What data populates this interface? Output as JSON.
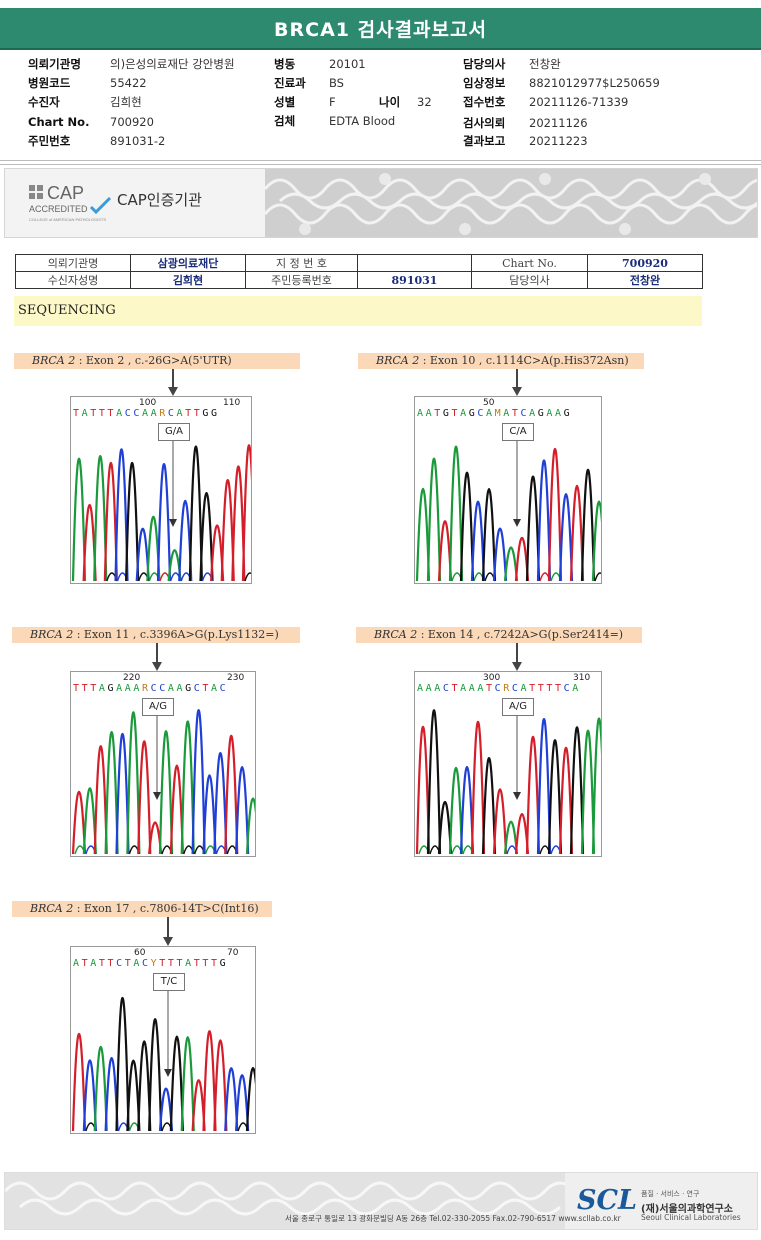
{
  "report": {
    "title": "BRCA1 검사결과보고서"
  },
  "info": {
    "col1": [
      {
        "label": "의뢰기관명",
        "value": "의)은성의료재단 강안병원"
      },
      {
        "label": "병원코드",
        "value": "55422"
      },
      {
        "label": "수진자",
        "value": "김희현"
      },
      {
        "label": "Chart No.",
        "value": "700920"
      },
      {
        "label": "주민번호",
        "value": "891031-2"
      }
    ],
    "col2": [
      {
        "label": "병동",
        "value": "20101"
      },
      {
        "label": "진료과",
        "value": "BS"
      },
      {
        "label": "성별",
        "value": "F"
      },
      {
        "label": "검체",
        "value": "EDTA Blood"
      }
    ],
    "age": {
      "label": "나이",
      "value": "32"
    },
    "col3": [
      {
        "label": "담당의사",
        "value": "전창완"
      },
      {
        "label": "임상정보",
        "value": "8821012977$L250659"
      },
      {
        "label": "접수번호",
        "value": "20211126-71339"
      },
      {
        "label": "검사의뢰",
        "value": "20211126"
      },
      {
        "label": "결과보고",
        "value": "20211223"
      }
    ]
  },
  "banner": {
    "cap_word": "CAP",
    "cap_accredited": "ACCREDITED",
    "cap_sub": "COLLEGE of AMERICAN PATHOLOGISTS",
    "cap_text": "CAP인증기관"
  },
  "patient_table": {
    "r1": [
      "의뢰기관명",
      "삼광의료재단",
      "지 정 번 호",
      "",
      "Chart No.",
      "700920"
    ],
    "r2": [
      "수신자성명",
      "김희현",
      "주민등록번호",
      "891031",
      "담당의사",
      "전창완"
    ]
  },
  "section": {
    "title": "SEQUENCING"
  },
  "variants": [
    {
      "gene": "BRCA 2",
      "desc": " : Exon 2 , c.-26G>A(5'UTR)",
      "pos1": "100",
      "pos2": "110",
      "seq": "TATTTACCAARCATTGG",
      "call": "G/A"
    },
    {
      "gene": "BRCA 2",
      "desc": " : Exon 10 , c.1114C>A(p.His372Asn)",
      "pos1": "50",
      "pos2": "",
      "seq": "AATGTAGCAMATCAGAAG",
      "call": "C/A"
    },
    {
      "gene": "BRCA 2",
      "desc": " : Exon 11 , c.3396A>G(p.Lys1132=)",
      "pos1": "220",
      "pos2": "230",
      "seq": "TTTAGAAARCCAAGCTAC",
      "call": "A/G"
    },
    {
      "gene": "BRCA 2",
      "desc": " : Exon 14 , c.7242A>G(p.Ser2414=)",
      "pos1": "300",
      "pos2": "310",
      "seq": "AAACTAAATCRCATTTTCA",
      "call": "A/G"
    },
    {
      "gene": "BRCA 2",
      "desc": " : Exon 17 , c.7806-14T>C(Int16)",
      "pos1": "60",
      "pos2": "70",
      "seq": "ATATTCTACYTTTATTTG",
      "call": "T/C"
    }
  ],
  "footer": {
    "address": "서울 종로구 통일로 13 광화문빌딩 A동 26층 Tel.02-330-2055 Fax.02-790-6517 www.scllab.co.kr",
    "logo": "SCL",
    "tagline": "품질 · 서비스 · 연구",
    "org_ko": "(재)서울의과학연구소",
    "org_en": "Seoul Clinical Laboratories"
  },
  "colors": {
    "header": "#2e8a6e",
    "label_bg": "#fbd8b8",
    "seq_bg": "#fdf8c8",
    "A": "#1a9a3a",
    "C": "#1f3fd6",
    "G": "#111111",
    "T": "#d41f2a"
  }
}
